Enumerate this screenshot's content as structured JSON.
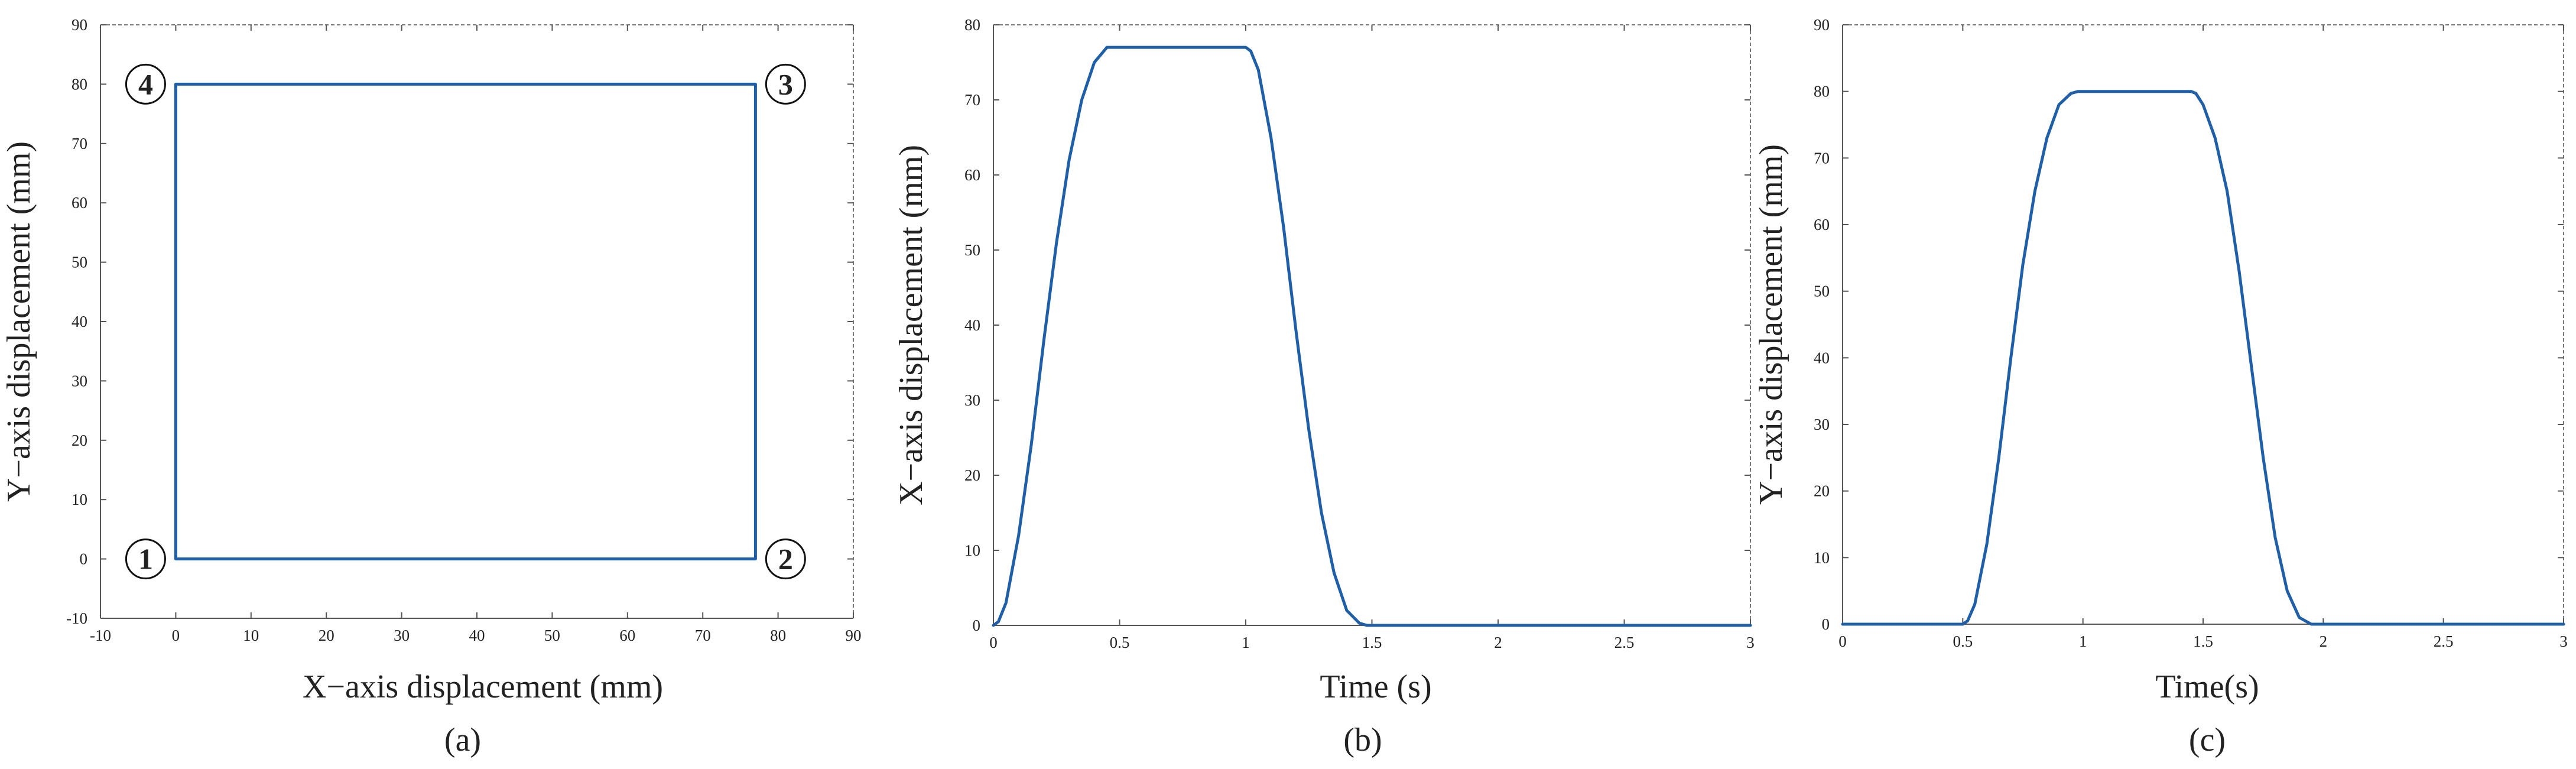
{
  "chart_data": [
    {
      "type": "line",
      "panel": "(a)",
      "xlabel": "X−axis displacement (mm)",
      "ylabel": "Y−axis displacement (mm)",
      "xlim": [
        -10,
        90
      ],
      "ylim": [
        -10,
        90
      ],
      "xticks": [
        -10,
        0,
        10,
        20,
        30,
        40,
        50,
        60,
        70,
        80,
        90
      ],
      "yticks": [
        -10,
        0,
        10,
        20,
        30,
        40,
        50,
        60,
        70,
        80,
        90
      ],
      "color": "#1f5fa8",
      "series": [
        {
          "x": [
            0,
            77,
            77,
            0,
            0
          ],
          "y": [
            0,
            0,
            80,
            80,
            0
          ]
        }
      ],
      "annotations": [
        {
          "text": "1",
          "x": -4,
          "y": 0
        },
        {
          "text": "2",
          "x": 81,
          "y": 0
        },
        {
          "text": "3",
          "x": 81,
          "y": 80
        },
        {
          "text": "4",
          "x": -4,
          "y": 80
        }
      ]
    },
    {
      "type": "line",
      "panel": "(b)",
      "xlabel": "Time (s)",
      "ylabel": "X−axis displacement (mm)",
      "xlim": [
        0,
        3
      ],
      "ylim": [
        0,
        80
      ],
      "xticks": [
        0,
        0.5,
        1,
        1.5,
        2,
        2.5,
        3
      ],
      "yticks": [
        0,
        10,
        20,
        30,
        40,
        50,
        60,
        70,
        80
      ],
      "color": "#1f5fa8",
      "series": [
        {
          "x": [
            0,
            0.02,
            0.05,
            0.1,
            0.15,
            0.2,
            0.25,
            0.3,
            0.35,
            0.4,
            0.45,
            0.48,
            0.5,
            1.0,
            1.02,
            1.05,
            1.1,
            1.15,
            1.2,
            1.25,
            1.3,
            1.35,
            1.4,
            1.45,
            1.48,
            1.5,
            2.0,
            2.5,
            3.0
          ],
          "y": [
            0,
            0.5,
            3,
            12,
            24,
            38,
            51,
            62,
            70,
            75,
            77,
            77,
            77,
            77,
            76.5,
            74,
            65,
            53,
            39,
            26,
            15,
            7,
            2,
            0.3,
            0,
            0,
            0,
            0,
            0
          ]
        }
      ]
    },
    {
      "type": "line",
      "panel": "(c)",
      "xlabel": "Time(s)",
      "ylabel": "Y−axis displacement (mm)",
      "xlim": [
        0,
        3
      ],
      "ylim": [
        0,
        90
      ],
      "xticks": [
        0,
        0.5,
        1,
        1.5,
        2,
        2.5,
        3
      ],
      "yticks": [
        0,
        10,
        20,
        30,
        40,
        50,
        60,
        70,
        80,
        90
      ],
      "color": "#1f5fa8",
      "series": [
        {
          "x": [
            0,
            0.5,
            0.52,
            0.55,
            0.6,
            0.65,
            0.7,
            0.75,
            0.8,
            0.85,
            0.9,
            0.95,
            0.98,
            1.0,
            1.45,
            1.47,
            1.5,
            1.55,
            1.6,
            1.65,
            1.7,
            1.75,
            1.8,
            1.85,
            1.9,
            1.95,
            2.0,
            2.5,
            3.0
          ],
          "y": [
            0,
            0,
            0.5,
            3,
            12,
            25,
            40,
            54,
            65,
            73,
            78,
            79.7,
            80,
            80,
            80,
            79.7,
            78,
            73,
            65,
            53,
            39,
            25,
            13,
            5,
            1,
            0,
            0,
            0,
            0
          ]
        }
      ]
    }
  ],
  "captions": [
    "(a)",
    "(b)",
    "(c)"
  ]
}
